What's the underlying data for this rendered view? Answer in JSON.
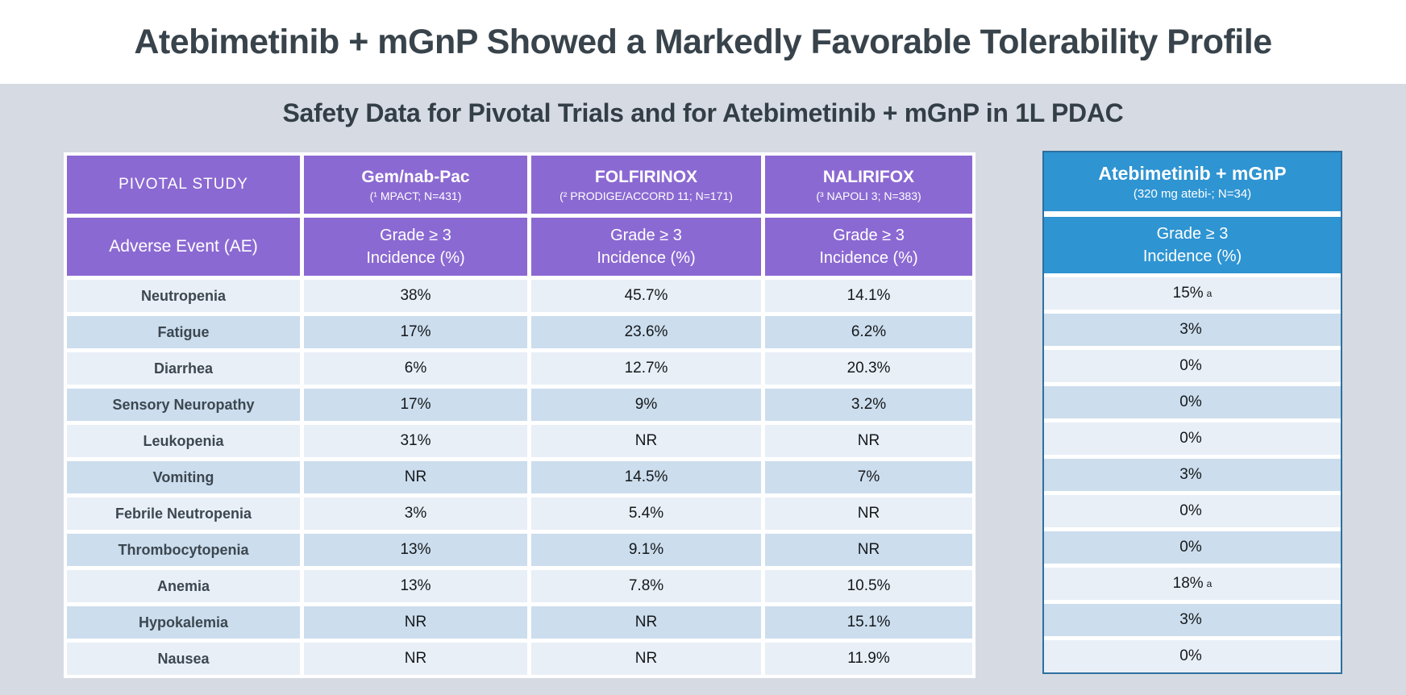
{
  "slide": {
    "title": "Atebimetinib + mGnP Showed a Markedly Favorable Tolerability Profile",
    "subtitle": "Safety Data for Pivotal Trials and for Atebimetinib + mGnP in 1L PDAC"
  },
  "colors": {
    "purple_header": "#8B69D2",
    "blue_header": "#2E94D2",
    "blue_table_border": "#2E6F9F",
    "row_light": "#E9EFF7",
    "row_dark": "#CCDDED",
    "page_background": "#D6DBE3",
    "title_text": "#38434B",
    "label_text": "#3C4750"
  },
  "pivotal_table": {
    "corner_label": "PIVOTAL STUDY",
    "ae_header": "Adverse Event (AE)",
    "grade_line1": "Grade ≥ 3",
    "grade_line2": "Incidence (%)",
    "columns": [
      {
        "name": "Gem/nab-Pac",
        "detail": "(¹ MPACT; N=431)"
      },
      {
        "name": "FOLFIRINOX",
        "detail": "(² PRODIGE/ACCORD 11; N=171)"
      },
      {
        "name": "NALIRIFOX",
        "detail": "(³ NAPOLI 3; N=383)"
      }
    ],
    "rows": [
      {
        "label": "Neutropenia",
        "values": [
          "38%",
          "45.7%",
          "14.1%"
        ]
      },
      {
        "label": "Fatigue",
        "values": [
          "17%",
          "23.6%",
          "6.2%"
        ]
      },
      {
        "label": "Diarrhea",
        "values": [
          "6%",
          "12.7%",
          "20.3%"
        ]
      },
      {
        "label": "Sensory Neuropathy",
        "values": [
          "17%",
          "9%",
          "3.2%"
        ]
      },
      {
        "label": "Leukopenia",
        "values": [
          "31%",
          "NR",
          "NR"
        ]
      },
      {
        "label": "Vomiting",
        "values": [
          "NR",
          "14.5%",
          "7%"
        ]
      },
      {
        "label": "Febrile Neutropenia",
        "values": [
          "3%",
          "5.4%",
          "NR"
        ]
      },
      {
        "label": "Thrombocytopenia",
        "values": [
          "13%",
          "9.1%",
          "NR"
        ]
      },
      {
        "label": "Anemia",
        "values": [
          "13%",
          "7.8%",
          "10.5%"
        ]
      },
      {
        "label": "Hypokalemia",
        "values": [
          "NR",
          "NR",
          "15.1%"
        ]
      },
      {
        "label": "Nausea",
        "values": [
          "NR",
          "NR",
          "11.9%"
        ]
      }
    ]
  },
  "atebi_table": {
    "name": "Atebimetinib + mGnP",
    "detail": "(320 mg atebi-; N=34)",
    "grade_line1": "Grade ≥ 3",
    "grade_line2": "Incidence (%)",
    "values": [
      {
        "v": "15%",
        "sup": "a"
      },
      {
        "v": "3%"
      },
      {
        "v": "0%"
      },
      {
        "v": "0%"
      },
      {
        "v": "0%"
      },
      {
        "v": "3%"
      },
      {
        "v": "0%"
      },
      {
        "v": "0%"
      },
      {
        "v": "18%",
        "sup": "a"
      },
      {
        "v": "3%"
      },
      {
        "v": "0%"
      }
    ]
  }
}
